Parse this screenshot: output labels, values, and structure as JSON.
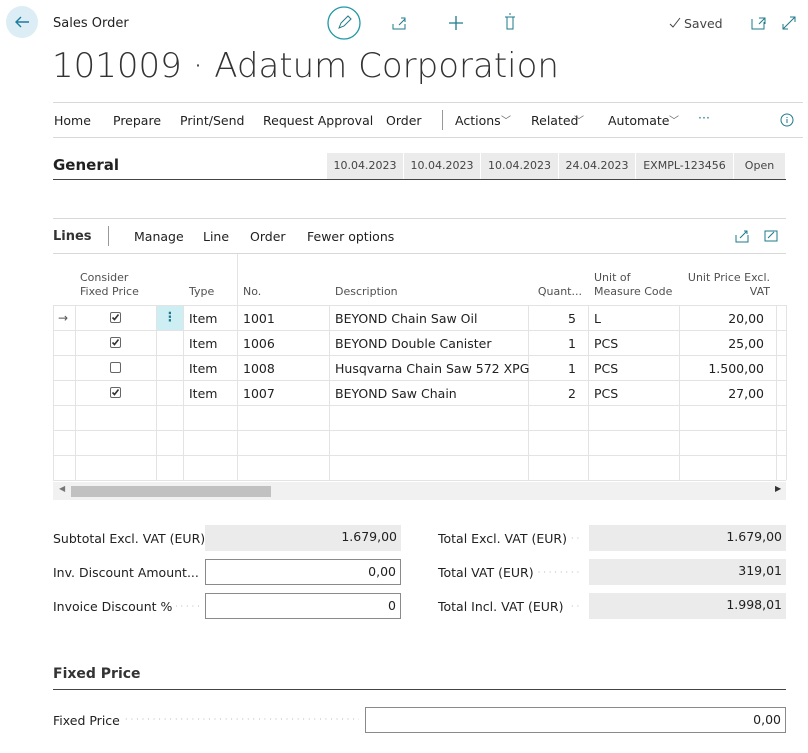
{
  "header": {
    "breadcrumb": "Sales Order",
    "status": "Saved",
    "title": "101009 · Adatum Corporation"
  },
  "menu": [
    "Home",
    "Prepare",
    "Print/Send",
    "Request Approval",
    "Order",
    "Actions",
    "Related",
    "Automate"
  ],
  "general": {
    "title": "General",
    "fields": [
      "10.04.2023",
      "10.04.2023",
      "10.04.2023",
      "24.04.2023",
      "EXMPL-123456",
      "Open"
    ]
  },
  "lines": {
    "title": "Lines",
    "actions": [
      "Manage",
      "Line",
      "Order",
      "Fewer options"
    ],
    "columns": {
      "consider": "Consider Fixed Price",
      "type": "Type",
      "no": "No.",
      "description": "Description",
      "quantity": "Quant...",
      "unit": "Unit of Measure Code",
      "price": "Unit Price Excl. VAT"
    },
    "rows": [
      {
        "consider": true,
        "type": "Item",
        "no": "1001",
        "description": "BEYOND Chain Saw Oil",
        "quantity": 5,
        "unit": "L",
        "price": "20,00"
      },
      {
        "consider": true,
        "type": "Item",
        "no": "1006",
        "description": "BEYOND Double Canister",
        "quantity": 1,
        "unit": "PCS",
        "price": "25,00"
      },
      {
        "consider": false,
        "type": "Item",
        "no": "1008",
        "description": "Husqvarna Chain Saw 572 XPG",
        "quantity": 1,
        "unit": "PCS",
        "price": "1.500,00"
      },
      {
        "consider": true,
        "type": "Item",
        "no": "1007",
        "description": "BEYOND Saw Chain",
        "quantity": 2,
        "unit": "PCS",
        "price": "27,00"
      }
    ]
  },
  "totals": {
    "left": [
      {
        "label": "Subtotal Excl. VAT (EUR)",
        "value": "1.679,00",
        "editable": false
      },
      {
        "label": "Inv. Discount Amount...",
        "value": "0,00",
        "editable": true
      },
      {
        "label": "Invoice Discount %",
        "value": 0,
        "editable": true
      }
    ],
    "right": [
      {
        "label": "Total Excl. VAT (EUR)",
        "value": "1.679,00",
        "editable": false
      },
      {
        "label": "Total VAT (EUR)",
        "value": "319,01",
        "editable": false
      },
      {
        "label": "Total Incl. VAT (EUR)",
        "value": "1.998,01",
        "editable": false
      }
    ]
  },
  "fixed_price": {
    "title": "Fixed Price",
    "label": "Fixed Price",
    "value": "0,00"
  }
}
